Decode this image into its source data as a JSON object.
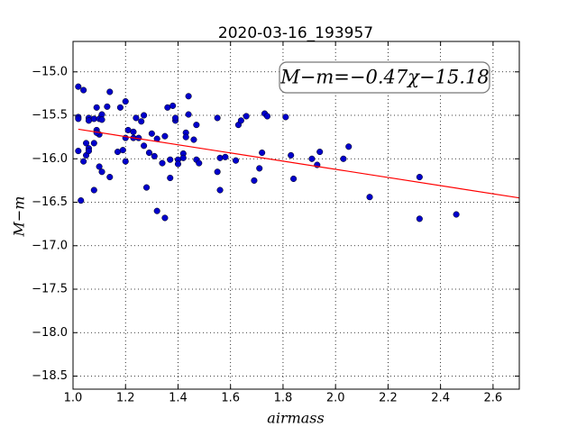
{
  "chart_data": {
    "type": "scatter",
    "title": "2020-03-16_193957",
    "x_label": "airmass",
    "y_label": "M−m",
    "annotation": "M−m=−0.47χ−15.18",
    "xlim": [
      1.0,
      2.7
    ],
    "ylim": [
      -18.65,
      -14.65
    ],
    "xticks": [
      {
        "value": 1.0,
        "label": "1.0"
      },
      {
        "value": 1.2,
        "label": "1.2"
      },
      {
        "value": 1.4,
        "label": "1.4"
      },
      {
        "value": 1.6,
        "label": "1.6"
      },
      {
        "value": 1.8,
        "label": "1.8"
      },
      {
        "value": 2.0,
        "label": "2.0"
      },
      {
        "value": 2.2,
        "label": "2.2"
      },
      {
        "value": 2.4,
        "label": "2.4"
      },
      {
        "value": 2.6,
        "label": "2.6"
      }
    ],
    "yticks": [
      {
        "value": -15.0,
        "label": "−15.0"
      },
      {
        "value": -15.5,
        "label": "−15.5"
      },
      {
        "value": -16.0,
        "label": "−16.0"
      },
      {
        "value": -16.5,
        "label": "−16.5"
      },
      {
        "value": -17.0,
        "label": "−17.0"
      },
      {
        "value": -17.5,
        "label": "−17.5"
      },
      {
        "value": -18.0,
        "label": "−18.0"
      },
      {
        "value": -18.5,
        "label": "−18.5"
      }
    ],
    "grid": true,
    "series": [
      {
        "type": "scatter",
        "color": "#0000cc",
        "x": [
          1.02,
          1.04,
          1.02,
          1.02,
          1.06,
          1.06,
          1.08,
          1.1,
          1.11,
          1.11,
          1.09,
          1.13,
          1.14,
          1.2,
          1.18,
          1.09,
          1.1,
          1.09,
          1.02,
          1.05,
          1.06,
          1.05,
          1.04,
          1.06,
          1.08,
          1.03,
          1.08,
          1.1,
          1.11,
          1.14,
          1.17,
          1.19,
          1.2,
          1.2,
          1.21,
          1.23,
          1.23,
          1.24,
          1.25,
          1.26,
          1.27,
          1.27,
          1.28,
          1.29,
          1.3,
          1.31,
          1.32,
          1.32,
          1.34,
          1.35,
          1.35,
          1.36,
          1.38,
          1.39,
          1.39,
          1.37,
          1.37,
          1.4,
          1.4,
          1.42,
          1.43,
          1.42,
          1.43,
          1.44,
          1.44,
          1.46,
          1.47,
          1.47,
          1.48,
          1.55,
          1.55,
          1.56,
          1.56,
          1.58,
          1.62,
          1.63,
          1.64,
          1.66,
          1.69,
          1.71,
          1.72,
          1.73,
          1.74,
          1.81,
          1.83,
          1.84,
          1.91,
          1.93,
          1.94,
          2.03,
          2.05,
          2.13,
          2.32,
          2.32,
          2.46
        ],
        "values": [
          -15.17,
          -15.21,
          -15.52,
          -15.54,
          -15.53,
          -15.56,
          -15.54,
          -15.54,
          -15.49,
          -15.55,
          -15.41,
          -15.4,
          -15.23,
          -15.34,
          -15.41,
          -15.67,
          -15.72,
          -15.7,
          -15.91,
          -15.82,
          -15.88,
          -15.96,
          -16.03,
          -15.91,
          -15.82,
          -16.48,
          -16.36,
          -16.09,
          -16.15,
          -16.21,
          -15.92,
          -15.9,
          -15.76,
          -16.03,
          -15.67,
          -15.69,
          -15.76,
          -15.53,
          -15.76,
          -15.57,
          -15.5,
          -15.85,
          -16.33,
          -15.93,
          -15.71,
          -15.97,
          -15.77,
          -16.6,
          -16.05,
          -16.68,
          -15.74,
          -15.41,
          -15.39,
          -15.56,
          -15.53,
          -16.01,
          -16.22,
          -16.01,
          -16.06,
          -15.94,
          -15.7,
          -15.99,
          -15.75,
          -15.28,
          -15.49,
          -15.78,
          -15.61,
          -16.01,
          -16.05,
          -15.53,
          -16.15,
          -16.36,
          -15.99,
          -15.98,
          -16.02,
          -15.61,
          -15.56,
          -15.51,
          -16.25,
          -16.11,
          -15.93,
          -15.48,
          -15.51,
          -15.52,
          -15.96,
          -16.23,
          -16.0,
          -16.07,
          -15.92,
          -16.0,
          -15.86,
          -16.44,
          -16.21,
          -16.69,
          -16.64
        ]
      },
      {
        "type": "line",
        "color": "#ff0000",
        "x": [
          1.02,
          2.7
        ],
        "values": [
          -15.66,
          -16.45
        ]
      }
    ]
  }
}
